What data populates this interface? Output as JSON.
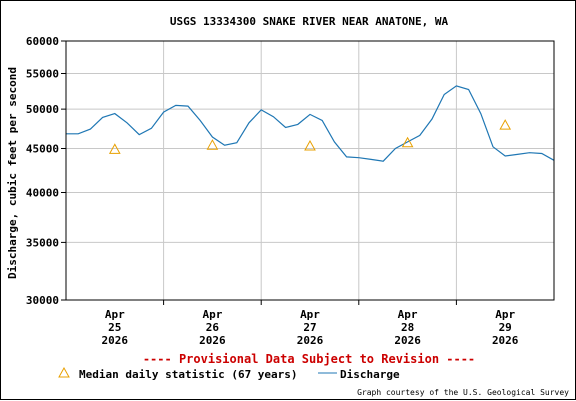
{
  "chart_data": {
    "type": "line",
    "title": "USGS 13334300 SNAKE RIVER NEAR ANATONE, WA",
    "ylabel": "Discharge, cubic feet per second",
    "xlabel": "",
    "y_scale": "log",
    "ylim": [
      30000,
      60000
    ],
    "y_ticks": [
      30000,
      35000,
      40000,
      45000,
      50000,
      55000,
      60000
    ],
    "y_tick_labels": [
      "30000",
      "35000",
      "40000",
      "45000",
      "50000",
      "55000",
      "60000"
    ],
    "x_range_days": [
      "2026-04-24T12:00",
      "2026-04-29T12:00"
    ],
    "x_ticks": [
      {
        "date": "2026-04-25T00:00",
        "month": "Apr",
        "day": "25",
        "year": "2026"
      },
      {
        "date": "2026-04-26T00:00",
        "month": "Apr",
        "day": "26",
        "year": "2026"
      },
      {
        "date": "2026-04-27T00:00",
        "month": "Apr",
        "day": "27",
        "year": "2026"
      },
      {
        "date": "2026-04-28T00:00",
        "month": "Apr",
        "day": "28",
        "year": "2026"
      },
      {
        "date": "2026-04-29T00:00",
        "month": "Apr",
        "day": "29",
        "year": "2026"
      }
    ],
    "grid": true,
    "series": [
      {
        "name": "Discharge",
        "color": "#1f77b4",
        "points": [
          [
            "2026-04-24T12:00",
            46800
          ],
          [
            "2026-04-24T15:00",
            46800
          ],
          [
            "2026-04-24T18:00",
            47400
          ],
          [
            "2026-04-24T21:00",
            48900
          ],
          [
            "2026-04-25T00:00",
            49400
          ],
          [
            "2026-04-25T03:00",
            48200
          ],
          [
            "2026-04-25T06:00",
            46700
          ],
          [
            "2026-04-25T09:00",
            47500
          ],
          [
            "2026-04-25T12:00",
            49600
          ],
          [
            "2026-04-25T15:00",
            50500
          ],
          [
            "2026-04-25T18:00",
            50400
          ],
          [
            "2026-04-25T21:00",
            48500
          ],
          [
            "2026-04-26T00:00",
            46400
          ],
          [
            "2026-04-26T03:00",
            45400
          ],
          [
            "2026-04-26T06:00",
            45700
          ],
          [
            "2026-04-26T09:00",
            48200
          ],
          [
            "2026-04-26T12:00",
            49900
          ],
          [
            "2026-04-26T15:00",
            49000
          ],
          [
            "2026-04-26T18:00",
            47600
          ],
          [
            "2026-04-26T21:00",
            48000
          ],
          [
            "2026-04-27T00:00",
            49300
          ],
          [
            "2026-04-27T03:00",
            48500
          ],
          [
            "2026-04-27T06:00",
            45800
          ],
          [
            "2026-04-27T09:00",
            44000
          ],
          [
            "2026-04-27T12:00",
            43900
          ],
          [
            "2026-04-27T15:00",
            43700
          ],
          [
            "2026-04-27T18:00",
            43500
          ],
          [
            "2026-04-27T21:00",
            45000
          ],
          [
            "2026-04-28T00:00",
            45800
          ],
          [
            "2026-04-28T03:00",
            46600
          ],
          [
            "2026-04-28T06:00",
            48700
          ],
          [
            "2026-04-28T09:00",
            52000
          ],
          [
            "2026-04-28T12:00",
            53200
          ],
          [
            "2026-04-28T15:00",
            52700
          ],
          [
            "2026-04-28T18:00",
            49400
          ],
          [
            "2026-04-28T21:00",
            45200
          ],
          [
            "2026-04-29T00:00",
            44100
          ],
          [
            "2026-04-29T03:00",
            44300
          ],
          [
            "2026-04-29T06:00",
            44500
          ],
          [
            "2026-04-29T09:00",
            44400
          ],
          [
            "2026-04-29T12:00",
            43600
          ]
        ]
      }
    ],
    "median_daily_statistic": {
      "name": "Median daily statistic (67 years)",
      "color": "#e8a000",
      "marker": "triangle",
      "points": [
        [
          "2026-04-25T00:00",
          44900
        ],
        [
          "2026-04-26T00:00",
          45400
        ],
        [
          "2026-04-27T00:00",
          45300
        ],
        [
          "2026-04-28T00:00",
          45700
        ],
        [
          "2026-04-29T00:00",
          47900
        ]
      ]
    },
    "provisional_note": "---- Provisional Data Subject to Revision ----",
    "credit": "Graph courtesy of the U.S. Geological Survey"
  }
}
